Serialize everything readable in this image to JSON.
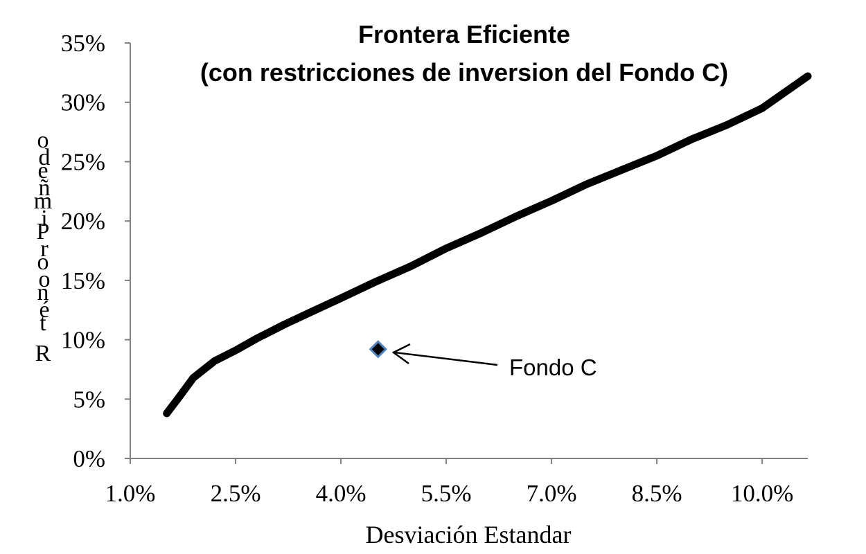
{
  "chart_data": {
    "type": "line",
    "title": "Frontera Eficiente",
    "subtitle": "(con restricciones de inversion del Fondo C)",
    "xlabel": "Desviación Estandar",
    "ylabel": "Rendimiento Esperado",
    "ylabel_visible_chars": [
      "o",
      "d",
      "e",
      "m",
      "ñ",
      "i",
      "P",
      "o",
      "n",
      "r",
      "o",
      "t",
      "é",
      "R"
    ],
    "xlim": [
      0.01,
      0.1065
    ],
    "ylim": [
      0,
      0.35
    ],
    "x_ticks": [
      0.01,
      0.025,
      0.04,
      0.055,
      0.07,
      0.085,
      0.1
    ],
    "x_tick_labels": [
      "1.0%",
      "2.5%",
      "4.0%",
      "5.5%",
      "7.0%",
      "8.5%",
      "10.0%"
    ],
    "y_ticks": [
      0,
      0.05,
      0.1,
      0.15,
      0.2,
      0.25,
      0.3,
      0.35
    ],
    "y_tick_labels": [
      "0%",
      "5%",
      "10%",
      "15%",
      "20%",
      "25%",
      "30%",
      "35%"
    ],
    "grid": false,
    "series": [
      {
        "color": "#000000",
        "x": [
          0.0152,
          0.017,
          0.019,
          0.022,
          0.025,
          0.028,
          0.032,
          0.036,
          0.04,
          0.045,
          0.05,
          0.055,
          0.06,
          0.065,
          0.07,
          0.075,
          0.08,
          0.085,
          0.09,
          0.095,
          0.1,
          0.1065
        ],
        "y": [
          0.038,
          0.052,
          0.068,
          0.082,
          0.091,
          0.101,
          0.113,
          0.124,
          0.135,
          0.149,
          0.162,
          0.177,
          0.19,
          0.204,
          0.217,
          0.231,
          0.243,
          0.255,
          0.269,
          0.281,
          0.295,
          0.322
        ]
      }
    ],
    "points": [
      {
        "label": "Fondo C",
        "x": 0.0453,
        "y": 0.092,
        "marker": "diamond",
        "fill": "#000000",
        "stroke": "#4f81bd"
      }
    ],
    "annotations": [
      {
        "text": "Fondo C",
        "arrow_to_point": 0
      }
    ]
  }
}
